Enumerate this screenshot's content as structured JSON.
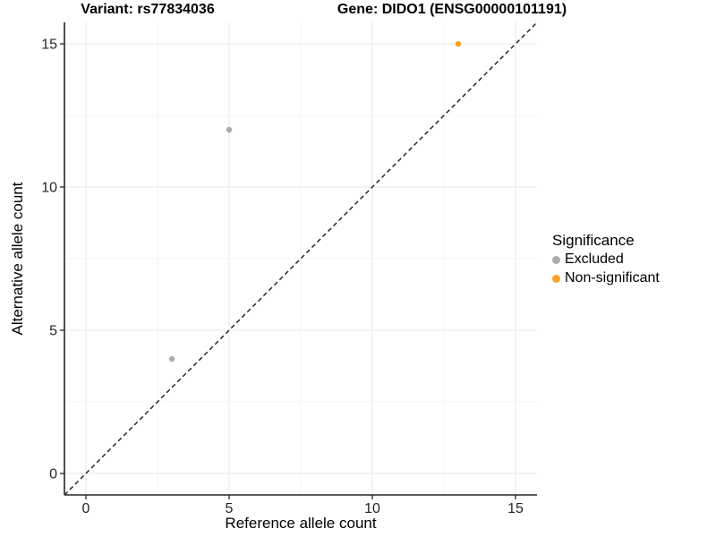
{
  "chart_data": {
    "type": "scatter",
    "title_left": "Variant: rs77834036",
    "title_right": "Gene: DIDO1 (ENSG00000101191)",
    "xlabel": "Reference allele count",
    "ylabel": "Alternative allele count",
    "xlim": [
      -0.75,
      15.75
    ],
    "ylim": [
      -0.75,
      15.75
    ],
    "x_ticks": [
      0,
      5,
      10,
      15
    ],
    "y_ticks": [
      0,
      5,
      10,
      15
    ],
    "minor_ticks": [
      2.5,
      7.5,
      12.5
    ],
    "grid": "major-and-minor",
    "identity_line": {
      "style": "dashed",
      "from": [
        -0.75,
        -0.75
      ],
      "to": [
        15.75,
        15.75
      ]
    },
    "series": [
      {
        "name": "Excluded",
        "color": "#ACACAC",
        "points": [
          [
            3,
            4
          ],
          [
            5,
            12
          ]
        ]
      },
      {
        "name": "Non-significant",
        "color": "#FCA329",
        "points": [
          [
            13,
            15
          ]
        ]
      }
    ],
    "legend": {
      "title": "Significance",
      "position": "right"
    }
  },
  "colors": {
    "axis_line": "#262626",
    "tick_label": "#262626",
    "grid_major": "#E7E7E7",
    "grid_minor": "#F4F4F4",
    "dashed_line": "#1A1A1A",
    "background": "#FFFFFF"
  }
}
